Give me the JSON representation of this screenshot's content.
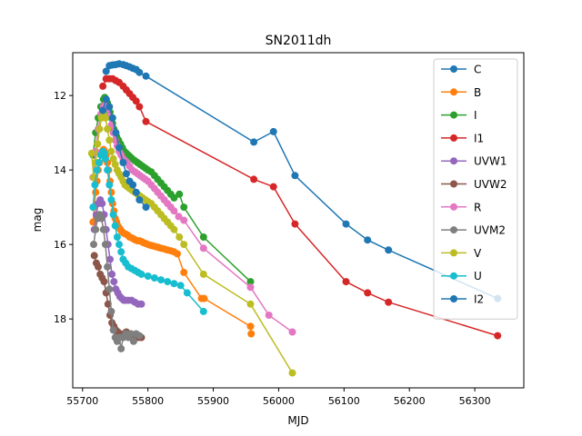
{
  "chart_data": {
    "type": "line",
    "title": "SN2011dh",
    "xlabel": "MJD",
    "ylabel": "mag",
    "xlim": [
      55685,
      56375
    ],
    "ylim": [
      19.85,
      10.85
    ],
    "y_inverted": true,
    "x_ticks": [
      55700,
      55800,
      55900,
      56000,
      56100,
      56200,
      56300
    ],
    "x_tick_labels": [
      "55700",
      "55800",
      "55900",
      "56000",
      "56100",
      "56200",
      "56300"
    ],
    "y_ticks": [
      12,
      14,
      16,
      18
    ],
    "y_tick_labels": [
      "12",
      "14",
      "16",
      "18"
    ],
    "grid": false,
    "legend_position": "top-right",
    "series": [
      {
        "name": "C",
        "color": "#1f77b4",
        "x": [
          55736,
          55741,
          55746,
          55751,
          55756,
          55762,
          55767,
          55772,
          55777,
          55782,
          55787,
          55797,
          55962,
          55992,
          56025,
          56103,
          56136,
          56168,
          56335
        ],
        "y": [
          11.35,
          11.2,
          11.18,
          11.17,
          11.15,
          11.17,
          11.2,
          11.23,
          11.27,
          11.3,
          11.38,
          11.48,
          13.25,
          12.97,
          14.15,
          15.45,
          15.88,
          16.15,
          17.45
        ]
      },
      {
        "name": "B",
        "color": "#ff7f0e",
        "x": [
          55716,
          55718,
          55720,
          55722,
          55724,
          55726,
          55728,
          55730,
          55732,
          55734,
          55736,
          55738,
          55740,
          55742,
          55744,
          55746,
          55748,
          55750,
          55752,
          55754,
          55756,
          55758,
          55760,
          55763,
          55766,
          55769,
          55772,
          55775,
          55778,
          55781,
          55784,
          55787,
          55790,
          55793,
          55796,
          55800,
          55804,
          55808,
          55812,
          55816,
          55820,
          55825,
          55830,
          55835,
          55840,
          55845,
          55855,
          55882,
          55886,
          55957,
          55958
        ],
        "y": [
          15.4,
          15.0,
          14.6,
          14.3,
          14.0,
          13.8,
          13.6,
          13.5,
          13.45,
          13.5,
          13.6,
          13.8,
          14.0,
          14.3,
          14.6,
          14.9,
          15.1,
          15.3,
          15.4,
          15.5,
          15.55,
          15.6,
          15.65,
          15.7,
          15.72,
          15.75,
          15.8,
          15.82,
          15.85,
          15.88,
          15.9,
          15.9,
          15.92,
          15.95,
          15.97,
          16.0,
          16.02,
          16.04,
          16.06,
          16.08,
          16.1,
          16.12,
          16.15,
          16.17,
          16.2,
          16.25,
          16.75,
          17.45,
          17.45,
          18.2,
          18.4
        ]
      },
      {
        "name": "I",
        "color": "#2ca02c",
        "x": [
          55716,
          55720,
          55724,
          55728,
          55732,
          55734,
          55736,
          55738,
          55740,
          55742,
          55744,
          55746,
          55748,
          55750,
          55752,
          55755,
          55758,
          55761,
          55764,
          55767,
          55770,
          55773,
          55776,
          55780,
          55784,
          55788,
          55792,
          55796,
          55800,
          55805,
          55810,
          55815,
          55820,
          55825,
          55830,
          55835,
          55840,
          55848,
          55855,
          55885,
          55957
        ],
        "y": [
          13.6,
          13.0,
          12.6,
          12.3,
          12.1,
          12.05,
          12.1,
          12.2,
          12.3,
          12.45,
          12.6,
          12.75,
          12.9,
          13.0,
          13.1,
          13.2,
          13.3,
          13.4,
          13.5,
          13.55,
          13.6,
          13.65,
          13.7,
          13.75,
          13.8,
          13.85,
          13.9,
          13.95,
          14.0,
          14.05,
          14.15,
          14.25,
          14.35,
          14.45,
          14.55,
          14.65,
          14.75,
          14.65,
          15.0,
          15.8,
          17.0
        ]
      },
      {
        "name": "I1",
        "color": "#d62728",
        "x": [
          55731,
          55736,
          55741,
          55746,
          55751,
          55756,
          55762,
          55767,
          55772,
          55777,
          55782,
          55787,
          55797,
          55962,
          55992,
          56025,
          56103,
          56136,
          56168,
          56335
        ],
        "y": [
          11.75,
          11.55,
          11.55,
          11.55,
          11.6,
          11.65,
          11.75,
          11.85,
          11.95,
          12.05,
          12.15,
          12.3,
          12.7,
          14.25,
          14.45,
          15.45,
          17.0,
          17.3,
          17.55,
          18.45
        ]
      },
      {
        "name": "UVW1",
        "color": "#9467bd",
        "x": [
          55718,
          55721,
          55724,
          55727,
          55730,
          55733,
          55736,
          55739,
          55742,
          55745,
          55748,
          55751,
          55754,
          55757,
          55760,
          55763,
          55766,
          55770,
          55775,
          55780,
          55785,
          55790
        ],
        "y": [
          15.6,
          15.2,
          14.9,
          14.8,
          14.9,
          15.2,
          15.6,
          16.0,
          16.4,
          16.8,
          17.0,
          17.2,
          17.3,
          17.4,
          17.45,
          17.5,
          17.5,
          17.5,
          17.5,
          17.55,
          17.6,
          17.6
        ]
      },
      {
        "name": "UVW2",
        "color": "#8c564b",
        "x": [
          55718,
          55721,
          55724,
          55727,
          55730,
          55733,
          55736,
          55739,
          55742,
          55745,
          55748,
          55751,
          55754,
          55757,
          55760,
          55763,
          55767,
          55771,
          55775,
          55780,
          55785,
          55790
        ],
        "y": [
          16.3,
          16.5,
          16.6,
          16.8,
          16.9,
          17.0,
          17.3,
          17.6,
          17.9,
          18.1,
          18.2,
          18.3,
          18.35,
          18.4,
          18.45,
          18.4,
          18.35,
          18.4,
          18.45,
          18.5,
          18.5,
          18.5
        ]
      },
      {
        "name": "R",
        "color": "#e377c2",
        "x": [
          55716,
          55720,
          55724,
          55728,
          55732,
          55735,
          55738,
          55741,
          55744,
          55747,
          55750,
          55753,
          55756,
          55759,
          55762,
          55765,
          55768,
          55772,
          55776,
          55780,
          55784,
          55788,
          55792,
          55796,
          55800,
          55805,
          55810,
          55815,
          55820,
          55825,
          55830,
          55835,
          55840,
          55847,
          55855,
          55885,
          55957,
          55985,
          56021
        ],
        "y": [
          14.2,
          13.5,
          12.9,
          12.5,
          12.3,
          12.25,
          12.35,
          12.55,
          12.8,
          13.0,
          13.2,
          13.35,
          13.5,
          13.6,
          13.7,
          13.75,
          13.8,
          13.9,
          14.0,
          14.05,
          14.1,
          14.15,
          14.2,
          14.25,
          14.3,
          14.4,
          14.5,
          14.6,
          14.7,
          14.8,
          14.9,
          15.0,
          15.1,
          15.25,
          15.35,
          16.1,
          17.15,
          17.9,
          18.35
        ]
      },
      {
        "name": "UVM2",
        "color": "#7f7f7f",
        "x": [
          55717,
          55720,
          55723,
          55726,
          55729,
          55732,
          55735,
          55738,
          55741,
          55744,
          55747,
          55750,
          55753,
          55756,
          55759,
          55762,
          55766,
          55770,
          55774,
          55778,
          55782,
          55787
        ],
        "y": [
          16.0,
          15.6,
          15.3,
          15.2,
          15.3,
          15.6,
          16.0,
          16.6,
          17.2,
          17.8,
          18.3,
          18.5,
          18.6,
          18.5,
          18.8,
          18.5,
          18.4,
          18.5,
          18.4,
          18.6,
          18.4,
          18.45
        ]
      },
      {
        "name": "V",
        "color": "#bcbd22",
        "x": [
          55714,
          55717,
          55720,
          55723,
          55726,
          55729,
          55732,
          55735,
          55738,
          55741,
          55744,
          55747,
          55750,
          55753,
          55756,
          55759,
          55762,
          55765,
          55768,
          55772,
          55776,
          55780,
          55784,
          55788,
          55792,
          55796,
          55800,
          55805,
          55810,
          55815,
          55820,
          55825,
          55830,
          55835,
          55840,
          55848,
          55855,
          55885,
          55957,
          56021
        ],
        "y": [
          13.55,
          14.2,
          13.8,
          13.3,
          12.9,
          12.6,
          12.5,
          12.6,
          12.9,
          13.2,
          13.5,
          13.7,
          13.85,
          14.0,
          14.1,
          14.2,
          14.3,
          14.4,
          14.45,
          14.5,
          14.55,
          14.6,
          14.65,
          14.7,
          14.75,
          14.8,
          14.85,
          14.9,
          15.0,
          15.1,
          15.2,
          15.3,
          15.4,
          15.5,
          15.6,
          15.8,
          16.0,
          16.8,
          17.6,
          19.45
        ]
      },
      {
        "name": "U",
        "color": "#17becf",
        "x": [
          55716,
          55719,
          55722,
          55725,
          55728,
          55731,
          55733,
          55735,
          55738,
          55741,
          55744,
          55747,
          55750,
          55753,
          55756,
          55759,
          55762,
          55766,
          55770,
          55775,
          55780,
          55785,
          55790,
          55800,
          55810,
          55820,
          55830,
          55840,
          55850,
          55860,
          55885
        ],
        "y": [
          15.0,
          14.4,
          14.0,
          13.8,
          13.6,
          13.5,
          13.55,
          13.7,
          14.0,
          14.4,
          14.8,
          15.2,
          15.5,
          15.8,
          16.0,
          16.2,
          16.4,
          16.5,
          16.6,
          16.65,
          16.7,
          16.75,
          16.8,
          16.85,
          16.9,
          16.95,
          17.0,
          17.05,
          17.1,
          17.3,
          17.8
        ]
      },
      {
        "name": "I2",
        "color": "#1f77b4",
        "x": [
          55731,
          55736,
          55741,
          55746,
          55751,
          55756,
          55762,
          55767,
          55772,
          55777,
          55782,
          55787,
          55797
        ],
        "y": [
          12.4,
          12.1,
          12.3,
          12.6,
          13.0,
          13.4,
          13.8,
          14.1,
          14.3,
          14.4,
          14.6,
          14.8,
          15.0
        ]
      }
    ]
  }
}
